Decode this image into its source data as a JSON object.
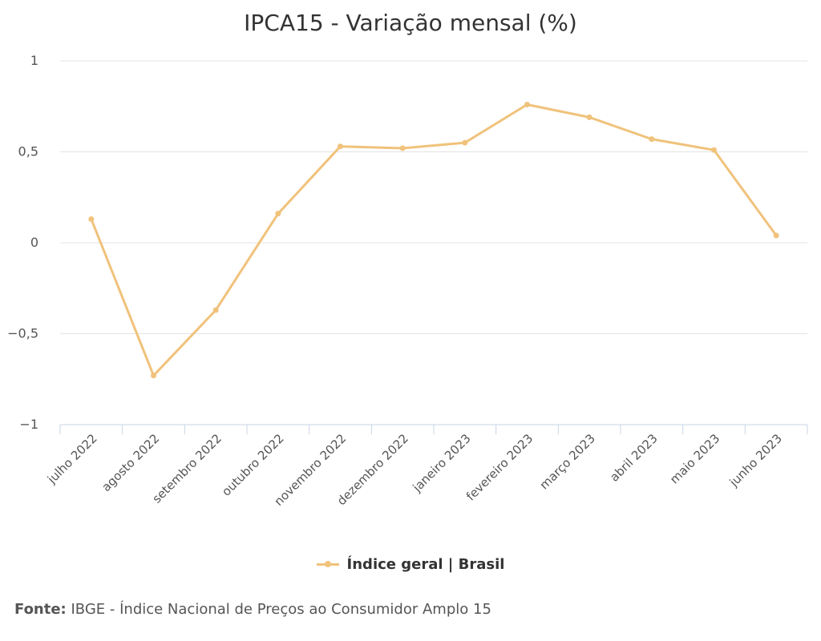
{
  "chart_data": {
    "type": "line",
    "title": "IPCA15 - Variação mensal (%)",
    "categories": [
      "julho 2022",
      "agosto 2022",
      "setembro 2022",
      "outubro 2022",
      "novembro 2022",
      "dezembro 2022",
      "janeiro 2023",
      "fevereiro 2023",
      "março 2023",
      "abril 2023",
      "maio 2023",
      "junho 2023"
    ],
    "series": [
      {
        "name": "Índice geral | Brasil",
        "values": [
          0.13,
          -0.73,
          -0.37,
          0.16,
          0.53,
          0.52,
          0.55,
          0.76,
          0.69,
          0.57,
          0.51,
          0.04
        ],
        "color": "#f0c27b"
      }
    ],
    "ylim": [
      -1,
      1
    ],
    "yticks": [
      1,
      0.5,
      0,
      -0.5,
      -1
    ],
    "ytick_labels": [
      "1",
      "0,5",
      "0",
      "−0,5",
      "−1"
    ],
    "grid": true,
    "legend_position": "bottom"
  },
  "source": {
    "label": "Fonte:",
    "text": "IBGE - Índice Nacional de Preços ao Consumidor Amplo 15"
  }
}
